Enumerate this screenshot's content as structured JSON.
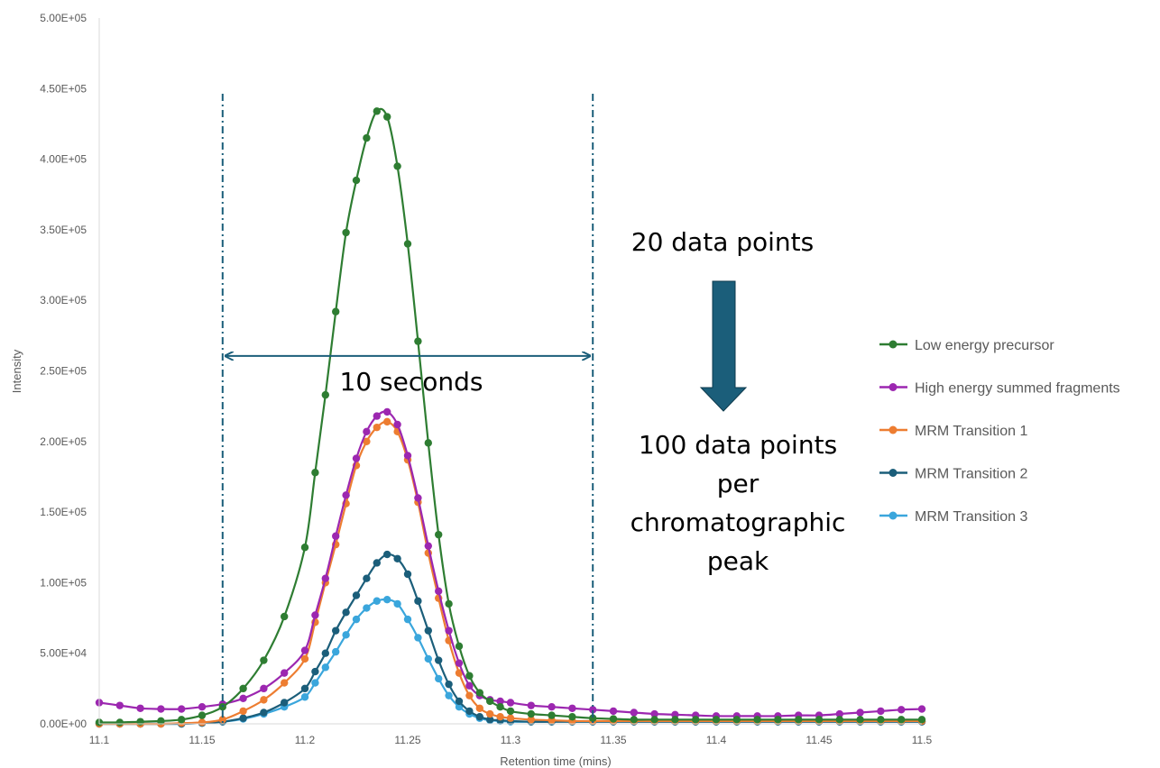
{
  "chart_data": {
    "type": "line",
    "xlabel": "Retention time (mins)",
    "ylabel": "Intensity",
    "xlim": [
      11.1,
      11.5
    ],
    "ylim": [
      0,
      500000
    ],
    "x_ticks": [
      11.1,
      11.15,
      11.2,
      11.25,
      11.3,
      11.35,
      11.4,
      11.45,
      11.5
    ],
    "x_tick_labels": [
      "11.1",
      "11.15",
      "11.2",
      "11.25",
      "11.3",
      "11.35",
      "11.4",
      "11.45",
      "11.5"
    ],
    "y_ticks": [
      0,
      50000,
      100000,
      150000,
      200000,
      250000,
      300000,
      350000,
      400000,
      450000,
      500000
    ],
    "y_tick_labels": [
      "0.00E+00",
      "5.00E+04",
      "1.00E+05",
      "1.50E+05",
      "2.00E+05",
      "2.50E+05",
      "3.00E+05",
      "3.50E+05",
      "4.00E+05",
      "4.50E+05",
      "5.00E+05"
    ],
    "grid": false,
    "legend_position": "right",
    "series": [
      {
        "name": "Low energy precursor",
        "color": "#2e7d32",
        "x": [
          11.1,
          11.11,
          11.12,
          11.13,
          11.14,
          11.15,
          11.16,
          11.17,
          11.18,
          11.19,
          11.2,
          11.205,
          11.21,
          11.215,
          11.22,
          11.225,
          11.23,
          11.235,
          11.24,
          11.245,
          11.25,
          11.255,
          11.26,
          11.265,
          11.27,
          11.275,
          11.28,
          11.285,
          11.29,
          11.295,
          11.3,
          11.31,
          11.32,
          11.33,
          11.34,
          11.35,
          11.36,
          11.37,
          11.38,
          11.39,
          11.4,
          11.41,
          11.42,
          11.43,
          11.44,
          11.45,
          11.46,
          11.47,
          11.48,
          11.49,
          11.5
        ],
        "y": [
          1000,
          1000,
          1500,
          2000,
          3000,
          6000,
          12000,
          25000,
          45000,
          76000,
          125000,
          178000,
          233000,
          292000,
          348000,
          385000,
          415000,
          434000,
          430000,
          395000,
          340000,
          271000,
          199000,
          134000,
          85000,
          55000,
          34000,
          22000,
          16000,
          12000,
          9000,
          7000,
          6000,
          5000,
          4000,
          3500,
          3000,
          3000,
          3000,
          3000,
          3000,
          3000,
          3000,
          3000,
          3000,
          3000,
          3000,
          3000,
          3000,
          3000,
          3000
        ]
      },
      {
        "name": "High energy summed fragments",
        "color": "#9c27b0",
        "x": [
          11.1,
          11.11,
          11.12,
          11.13,
          11.14,
          11.15,
          11.16,
          11.17,
          11.18,
          11.19,
          11.2,
          11.205,
          11.21,
          11.215,
          11.22,
          11.225,
          11.23,
          11.235,
          11.24,
          11.245,
          11.25,
          11.255,
          11.26,
          11.265,
          11.27,
          11.275,
          11.28,
          11.285,
          11.29,
          11.295,
          11.3,
          11.31,
          11.32,
          11.33,
          11.34,
          11.35,
          11.36,
          11.37,
          11.38,
          11.39,
          11.4,
          11.41,
          11.42,
          11.43,
          11.44,
          11.45,
          11.46,
          11.47,
          11.48,
          11.49,
          11.5
        ],
        "y": [
          15000,
          13000,
          11000,
          10500,
          10500,
          12000,
          14000,
          18000,
          25000,
          36000,
          52000,
          77000,
          103000,
          133000,
          162000,
          188000,
          207000,
          218000,
          221000,
          212000,
          190000,
          160000,
          126000,
          94000,
          66000,
          43000,
          27000,
          20000,
          17000,
          16000,
          15000,
          13000,
          12000,
          11000,
          10000,
          9000,
          8000,
          7000,
          6500,
          6000,
          5500,
          5500,
          5500,
          5500,
          6000,
          6000,
          7000,
          8000,
          9000,
          10000,
          10500
        ]
      },
      {
        "name": "MRM Transition 1",
        "color": "#ed7d31",
        "x": [
          11.1,
          11.11,
          11.12,
          11.13,
          11.14,
          11.15,
          11.16,
          11.17,
          11.18,
          11.19,
          11.2,
          11.205,
          11.21,
          11.215,
          11.22,
          11.225,
          11.23,
          11.235,
          11.24,
          11.245,
          11.25,
          11.255,
          11.26,
          11.265,
          11.27,
          11.275,
          11.28,
          11.285,
          11.29,
          11.295,
          11.3,
          11.31,
          11.32,
          11.33,
          11.34,
          11.35,
          11.36,
          11.37,
          11.38,
          11.39,
          11.4,
          11.41,
          11.42,
          11.43,
          11.44,
          11.45,
          11.46,
          11.47,
          11.48,
          11.49,
          11.5
        ],
        "y": [
          0,
          0,
          0,
          0,
          500,
          1000,
          3000,
          9000,
          17000,
          29000,
          46000,
          72000,
          100000,
          127000,
          156000,
          183000,
          200000,
          210000,
          214000,
          207000,
          187000,
          157000,
          121000,
          89000,
          59000,
          36000,
          20000,
          11000,
          7000,
          5000,
          4000,
          3000,
          2500,
          2000,
          2000,
          2000,
          2000,
          2000,
          2000,
          2000,
          2000,
          2000,
          2000,
          2000,
          2000,
          2000,
          2000,
          2000,
          2000,
          2000,
          2000
        ]
      },
      {
        "name": "MRM Transition 2",
        "color": "#1b5e7a",
        "x": [
          11.1,
          11.11,
          11.12,
          11.13,
          11.14,
          11.15,
          11.16,
          11.17,
          11.18,
          11.19,
          11.2,
          11.205,
          11.21,
          11.215,
          11.22,
          11.225,
          11.23,
          11.235,
          11.24,
          11.245,
          11.25,
          11.255,
          11.26,
          11.265,
          11.27,
          11.275,
          11.28,
          11.285,
          11.29,
          11.295,
          11.3,
          11.31,
          11.32,
          11.33,
          11.34,
          11.35,
          11.36,
          11.37,
          11.38,
          11.39,
          11.4,
          11.41,
          11.42,
          11.43,
          11.44,
          11.45,
          11.46,
          11.47,
          11.48,
          11.49,
          11.5
        ],
        "y": [
          0,
          0,
          0,
          0,
          0,
          500,
          1500,
          4000,
          8000,
          15000,
          25000,
          37000,
          50000,
          66000,
          79000,
          91000,
          103000,
          114000,
          120000,
          117000,
          106000,
          87000,
          66000,
          45000,
          28000,
          16000,
          9000,
          5000,
          3000,
          2500,
          2000,
          1500,
          1500,
          1500,
          1500,
          1500,
          1500,
          1500,
          1500,
          1500,
          1500,
          1500,
          1500,
          1500,
          1500,
          1500,
          1500,
          1500,
          1500,
          1500,
          1500
        ]
      },
      {
        "name": "MRM Transition 3",
        "color": "#3aa6dc",
        "x": [
          11.1,
          11.11,
          11.12,
          11.13,
          11.14,
          11.15,
          11.16,
          11.17,
          11.18,
          11.19,
          11.2,
          11.205,
          11.21,
          11.215,
          11.22,
          11.225,
          11.23,
          11.235,
          11.24,
          11.245,
          11.25,
          11.255,
          11.26,
          11.265,
          11.27,
          11.275,
          11.28,
          11.285,
          11.29,
          11.295,
          11.3,
          11.31,
          11.32,
          11.33,
          11.34,
          11.35,
          11.36,
          11.37,
          11.38,
          11.39,
          11.4,
          11.41,
          11.42,
          11.43,
          11.44,
          11.45,
          11.46,
          11.47,
          11.48,
          11.49,
          11.5
        ],
        "y": [
          0,
          0,
          0,
          0,
          0,
          500,
          1500,
          3500,
          7000,
          12000,
          19000,
          29000,
          40000,
          51000,
          63000,
          74000,
          82000,
          87000,
          88000,
          85000,
          74000,
          61000,
          46000,
          32000,
          20000,
          12000,
          7000,
          4000,
          2500,
          2000,
          1500,
          1500,
          1500,
          1500,
          1500,
          1500,
          1500,
          1500,
          1500,
          1500,
          1500,
          1500,
          1500,
          1500,
          1500,
          1500,
          1500,
          1500,
          1500,
          1500,
          1500
        ]
      }
    ],
    "annotations": {
      "window_start": 11.16,
      "window_end": 11.34,
      "window_line_color": "#1b5e7a",
      "arrow_y": 260000,
      "arrow_color": "#1b5e7a",
      "width_label": "10 seconds",
      "top_label": "20 data points",
      "down_arrow_color": "#1b5e7a",
      "bottom_label_lines": [
        "100 data points",
        "per",
        "chromatographic",
        "peak"
      ]
    }
  }
}
